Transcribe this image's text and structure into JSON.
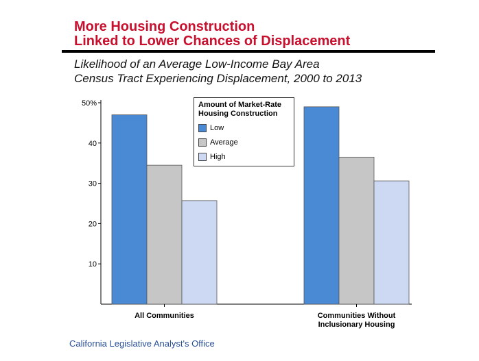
{
  "header": {
    "title_line1": "More Housing Construction",
    "title_line2": "Linked to Lower Chances of Displacement",
    "subtitle_line1": "Likelihood of an Average Low-Income Bay Area",
    "subtitle_line2": "Census Tract Experiencing Displacement, 2000 to 2013"
  },
  "colors": {
    "title": "#c8102e",
    "low": "#4a89d4",
    "average": "#c6c6c6",
    "high": "#cdd9f3",
    "source": "#2a4f99"
  },
  "chart_data": {
    "type": "bar",
    "title": "Likelihood of an Average Low-Income Bay Area Census Tract Experiencing Displacement, 2000 to 2013",
    "xlabel": "",
    "ylabel": "",
    "ylim": [
      0,
      50
    ],
    "yticks": [
      10,
      20,
      30,
      40,
      50
    ],
    "ytick_labels": [
      "10",
      "20",
      "30",
      "40",
      "50%"
    ],
    "categories": [
      [
        "All Communities"
      ],
      [
        "Communities Without",
        "Inclusionary Housing"
      ]
    ],
    "legend_title": [
      "Amount of Market-Rate",
      "Housing Construction"
    ],
    "legend_position": "top-center",
    "series": [
      {
        "name": "Low",
        "color_key": "low",
        "values": [
          47,
          49
        ]
      },
      {
        "name": "Average",
        "color_key": "average",
        "values": [
          34.5,
          36.5
        ]
      },
      {
        "name": "High",
        "color_key": "high",
        "values": [
          25.7,
          30.6
        ]
      }
    ]
  },
  "footer": {
    "source": "California Legislative Analyst's Office"
  }
}
